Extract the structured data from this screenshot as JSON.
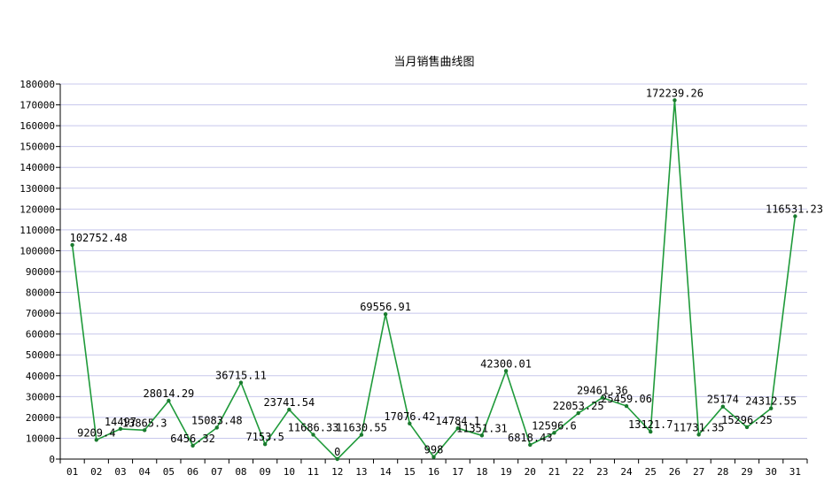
{
  "chart_data": {
    "type": "line",
    "title": "当月销售曲线图",
    "xlabel": "",
    "ylabel": "",
    "categories": [
      "01",
      "02",
      "03",
      "04",
      "05",
      "06",
      "07",
      "08",
      "09",
      "10",
      "11",
      "12",
      "13",
      "14",
      "15",
      "16",
      "17",
      "18",
      "19",
      "20",
      "21",
      "22",
      "23",
      "24",
      "25",
      "26",
      "27",
      "28",
      "29",
      "30",
      "31"
    ],
    "values": [
      102752.48,
      9209.4,
      14497,
      13865.3,
      28014.29,
      6456.32,
      15083.48,
      36715.11,
      7153.5,
      23741.54,
      11686.33,
      0,
      11630.55,
      69556.91,
      17076.42,
      998,
      14784.1,
      11351.31,
      42300.01,
      6818.43,
      12596.6,
      22053.25,
      29461.36,
      25459.06,
      13121.7,
      172239.26,
      11731.35,
      25174,
      15296.25,
      24312.55,
      116531.23
    ],
    "data_labels": [
      "102752.48",
      "9209.4",
      "14497",
      "13865.3",
      "28014.29",
      "6456.32",
      "15083.48",
      "36715.11",
      "7153.5",
      "23741.54",
      "11686.33",
      "0",
      "11630.55",
      "69556.91",
      "17076.42",
      "998",
      "14784.1",
      "11351.31",
      "42300.01",
      "6818.43",
      "12596.6",
      "22053.25",
      "29461.36",
      "25459.06",
      "13121.7",
      "172239.26",
      "11731.35",
      "25174",
      "15296.25",
      "24312.55",
      "116531.23"
    ],
    "ylim": [
      0,
      180000
    ],
    "yticks": [
      "0",
      "10000",
      "20000",
      "30000",
      "40000",
      "50000",
      "60000",
      "70000",
      "80000",
      "90000",
      "100000",
      "110000",
      "120000",
      "130000",
      "140000",
      "150000",
      "160000",
      "170000",
      "180000"
    ],
    "grid": true,
    "legend": "none",
    "colors": {
      "line": "#1f9a3a",
      "marker": "#1a7a2e",
      "grid": "#c8c8ec"
    }
  }
}
